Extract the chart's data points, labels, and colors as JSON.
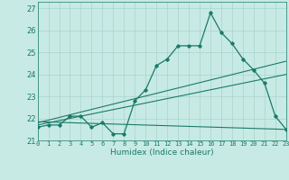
{
  "title": "",
  "xlabel": "Humidex (Indice chaleur)",
  "ylabel": "",
  "background_color": "#c8eae4",
  "grid_color": "#a8d4cc",
  "line_color": "#1a7a6a",
  "xlim": [
    0,
    23
  ],
  "ylim": [
    21,
    27.3
  ],
  "xticks": [
    0,
    1,
    2,
    3,
    4,
    5,
    6,
    7,
    8,
    9,
    10,
    11,
    12,
    13,
    14,
    15,
    16,
    17,
    18,
    19,
    20,
    21,
    22,
    23
  ],
  "yticks": [
    21,
    22,
    23,
    24,
    25,
    26,
    27
  ],
  "main_x": [
    0,
    1,
    2,
    3,
    4,
    5,
    6,
    7,
    8,
    9,
    10,
    11,
    12,
    13,
    14,
    15,
    16,
    17,
    18,
    19,
    20,
    21,
    22,
    23
  ],
  "main_y": [
    21.6,
    21.7,
    21.7,
    22.1,
    22.1,
    21.6,
    21.8,
    21.3,
    21.3,
    22.8,
    23.3,
    24.4,
    24.7,
    25.3,
    25.3,
    25.3,
    26.8,
    25.9,
    25.4,
    24.7,
    24.2,
    23.6,
    22.1,
    21.5
  ],
  "line1_x": [
    0,
    23
  ],
  "line1_y": [
    21.8,
    24.6
  ],
  "line2_x": [
    0,
    23
  ],
  "line2_y": [
    21.7,
    24.0
  ],
  "line3_x": [
    0,
    23
  ],
  "line3_y": [
    21.85,
    21.5
  ]
}
